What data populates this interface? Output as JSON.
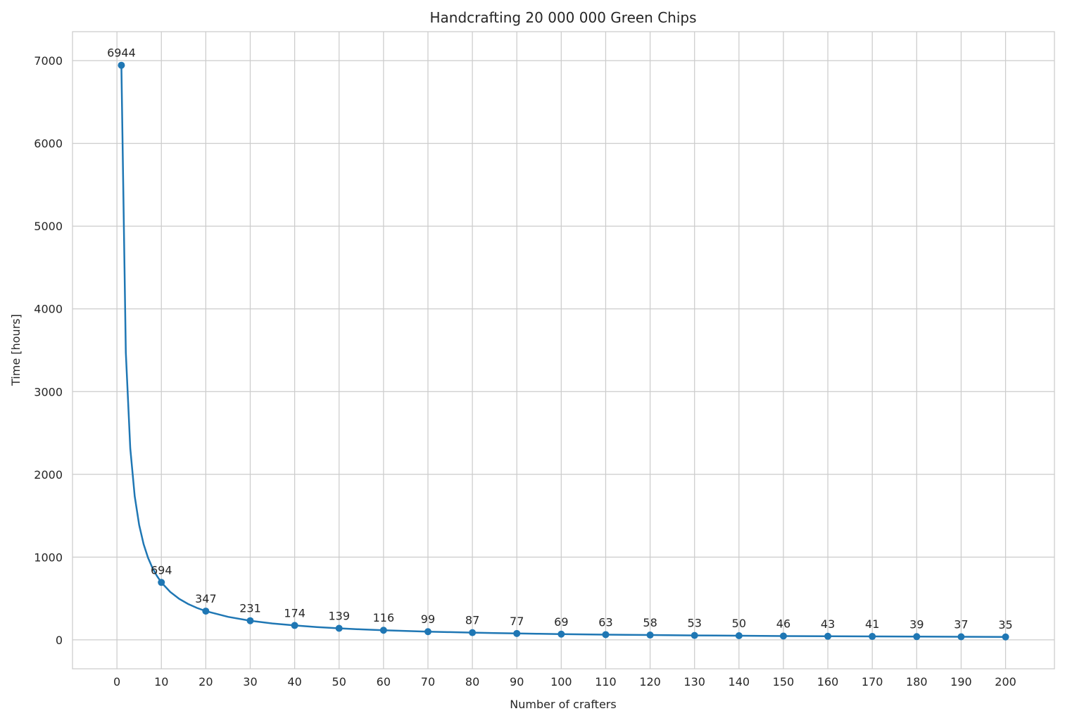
{
  "chart_data": {
    "type": "line",
    "title": "Handcrafting 20 000 000 Green Chips",
    "xlabel": "Number of crafters",
    "ylabel": "Time [hours]",
    "xlim": [
      -10,
      211
    ],
    "ylim": [
      -350,
      7350
    ],
    "xticks": [
      0,
      10,
      20,
      30,
      40,
      50,
      60,
      70,
      80,
      90,
      100,
      110,
      120,
      130,
      140,
      150,
      160,
      170,
      180,
      190,
      200
    ],
    "yticks": [
      0,
      1000,
      2000,
      3000,
      4000,
      5000,
      6000,
      7000
    ],
    "grid": true,
    "line_color": "#1f77b4",
    "curve": {
      "x": [
        1,
        2,
        3,
        4,
        5,
        6,
        7,
        8,
        9,
        10,
        12,
        14,
        16,
        18,
        20,
        25,
        30,
        35,
        40,
        45,
        50,
        55,
        60,
        65,
        70,
        75,
        80,
        85,
        90,
        95,
        100,
        110,
        120,
        130,
        140,
        150,
        160,
        170,
        180,
        190,
        200
      ],
      "y": [
        6944,
        3472,
        2315,
        1736,
        1389,
        1157,
        992,
        868,
        772,
        694,
        579,
        496,
        434,
        386,
        347,
        278,
        231,
        198,
        174,
        154,
        139,
        126,
        116,
        107,
        99,
        93,
        87,
        82,
        77,
        73,
        69,
        63,
        58,
        53,
        50,
        46,
        43,
        41,
        39,
        37,
        35
      ]
    },
    "markers": {
      "x": [
        1,
        10,
        20,
        30,
        40,
        50,
        60,
        70,
        80,
        90,
        100,
        110,
        120,
        130,
        140,
        150,
        160,
        170,
        180,
        190,
        200
      ],
      "y": [
        6944,
        694,
        347,
        231,
        174,
        139,
        116,
        99,
        87,
        77,
        69,
        63,
        58,
        53,
        50,
        46,
        43,
        41,
        39,
        37,
        35
      ],
      "labels": [
        "6944",
        "694",
        "347",
        "231",
        "174",
        "139",
        "116",
        "99",
        "87",
        "77",
        "69",
        "63",
        "58",
        "53",
        "50",
        "46",
        "43",
        "41",
        "39",
        "37",
        "35"
      ]
    }
  }
}
